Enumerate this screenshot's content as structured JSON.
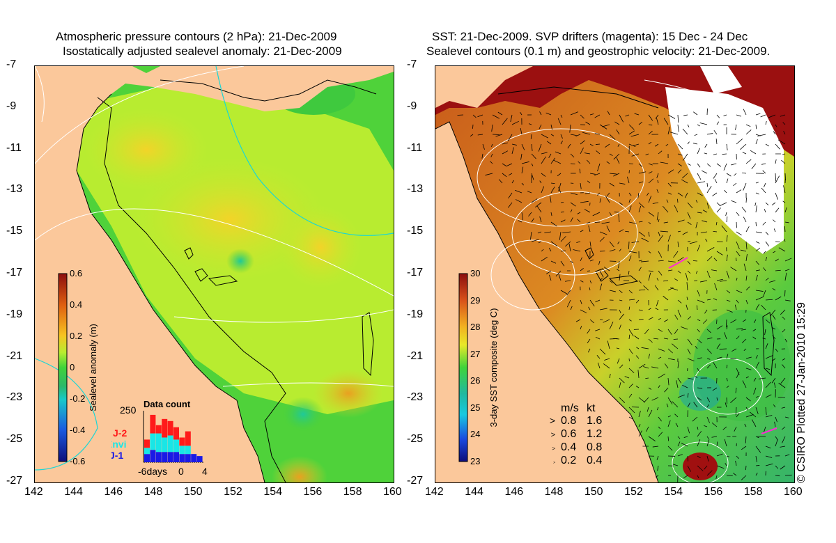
{
  "left_panel": {
    "title_line1": "Atmospheric pressure contours (2 hPa): 21-Dec-2009",
    "title_line2": "Isostatically adjusted sealevel anomaly: 21-Dec-2009",
    "colorbar": {
      "label": "Sealevel anomaly (m)",
      "ticks": [
        "0.6",
        "0.4",
        "0.2",
        "0",
        "-0.2",
        "-0.4",
        "-0.6"
      ],
      "min": -0.6,
      "max": 0.6
    },
    "data_count": {
      "title": "Data count",
      "y_tick": "250",
      "x_ticks": [
        "-6days",
        "0",
        "4"
      ],
      "legend": [
        {
          "label": "J-2",
          "color": "#ff1a1a"
        },
        {
          "label": "Envi",
          "color": "#19e6e6"
        },
        {
          "label": "J-1",
          "color": "#1a1ae6"
        }
      ],
      "bars": [
        {
          "j1": 40,
          "envi": 30,
          "j2": 40
        },
        {
          "j1": 60,
          "envi": 80,
          "j2": 90
        },
        {
          "j1": 50,
          "envi": 90,
          "j2": 40
        },
        {
          "j1": 50,
          "envi": 70,
          "j2": 90
        },
        {
          "j1": 50,
          "envi": 80,
          "j2": 70
        },
        {
          "j1": 50,
          "envi": 60,
          "j2": 60
        },
        {
          "j1": 40,
          "envi": 40,
          "j2": 40
        },
        {
          "j1": 40,
          "envi": 40,
          "j2": 70
        },
        {
          "j1": 40,
          "envi": 0,
          "j2": 0
        },
        {
          "j1": 30,
          "envi": 0,
          "j2": 0
        }
      ]
    }
  },
  "right_panel": {
    "title_line1": "SST: 21-Dec-2009. SVP drifters (magenta): 15 Dec - 24 Dec",
    "title_line2": "Sealevel contours (0.1 m) and geostrophic velocity: 21-Dec-2009.",
    "colorbar": {
      "label": "3-day SST composite (deg C)",
      "ticks": [
        "30",
        "29",
        "28",
        "27",
        "26",
        "25",
        "24",
        "23"
      ],
      "min": 23,
      "max": 30
    },
    "velocity_legend": {
      "header_ms": "m/s",
      "header_kt": "kt",
      "rows": [
        {
          "ms": "0.8",
          "kt": "1.6"
        },
        {
          "ms": "0.6",
          "kt": "1.2"
        },
        {
          "ms": "0.4",
          "kt": "0.8"
        },
        {
          "ms": "0.2",
          "kt": "0.4"
        }
      ]
    }
  },
  "axes": {
    "lat_ticks": [
      "-7",
      "-9",
      "-11",
      "-13",
      "-15",
      "-17",
      "-19",
      "-21",
      "-23",
      "-25",
      "-27"
    ],
    "lon_ticks": [
      "142",
      "144",
      "146",
      "148",
      "150",
      "152",
      "154",
      "156",
      "158",
      "160"
    ]
  },
  "credit": "© CSIRO Plotted 27-Jan-2010 15:29",
  "colors": {
    "land": "#fbc89b",
    "ocean_green": "#4fd23a",
    "ocean_yellowgreen": "#b8ec30",
    "sst_warm": "#d8641a",
    "sst_dark": "#8b0d0d",
    "sst_green": "#3fbf44"
  }
}
